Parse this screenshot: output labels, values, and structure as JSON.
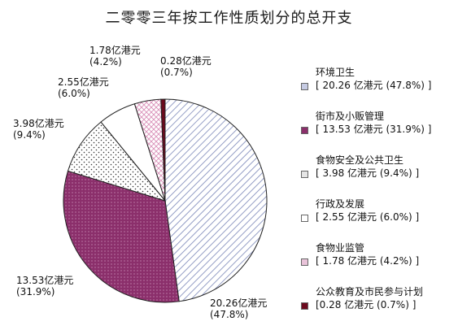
{
  "chart_data": {
    "type": "pie",
    "title": "二零零三年按工作性质划分的总开支",
    "slices": [
      {
        "name": "环境卫生",
        "value": 20.26,
        "percent": 47.8,
        "label_value": "20.26亿港元",
        "label_percent": "(47.8%)",
        "legend_value": "[ 20.26 亿港元 (47.8%) ]",
        "color": "#ffffff",
        "pattern_color": "#7a86b8"
      },
      {
        "name": "街市及小贩管理",
        "value": 13.53,
        "percent": 31.9,
        "label_value": "13.53亿港元",
        "label_percent": "(31.9%)",
        "legend_value": "[ 13.53 亿港元 (31.9%) ]",
        "color": "#8b2f6b",
        "pattern_color": "#d9a6c8"
      },
      {
        "name": "食物安全及公共卫生",
        "value": 3.98,
        "percent": 9.4,
        "label_value": "3.98亿港元",
        "label_percent": "(9.4%)",
        "legend_value": "[ 3.98 亿港元 (9.4%) ]",
        "color": "#ffffff",
        "pattern_color": "#333333"
      },
      {
        "name": "行政及发展",
        "value": 2.55,
        "percent": 6.0,
        "label_value": "2.55亿港元",
        "label_percent": "(6.0%)",
        "legend_value": "[ 2.55 亿港元 (6.0%) ]",
        "color": "#ffffff",
        "pattern_color": "#ffffff"
      },
      {
        "name": "食物业监管",
        "value": 1.78,
        "percent": 4.2,
        "label_value": "1.78亿港元",
        "label_percent": "(4.2%)",
        "legend_value": "[ 1.78 亿港元 (4.2%) ]",
        "color": "#ffffff",
        "pattern_color": "#d98fb8"
      },
      {
        "name": "公众教育及市民参与计划",
        "value": 0.28,
        "percent": 0.7,
        "label_value": "0.28亿港元",
        "label_percent": "(0.7%)",
        "legend_value": "[0.28 亿港元 (0.7%) ]",
        "color": "#6b0a1e",
        "pattern_color": "#6b0a1e"
      }
    ],
    "legend_position": "right",
    "start_angle": "top, clockwise"
  }
}
